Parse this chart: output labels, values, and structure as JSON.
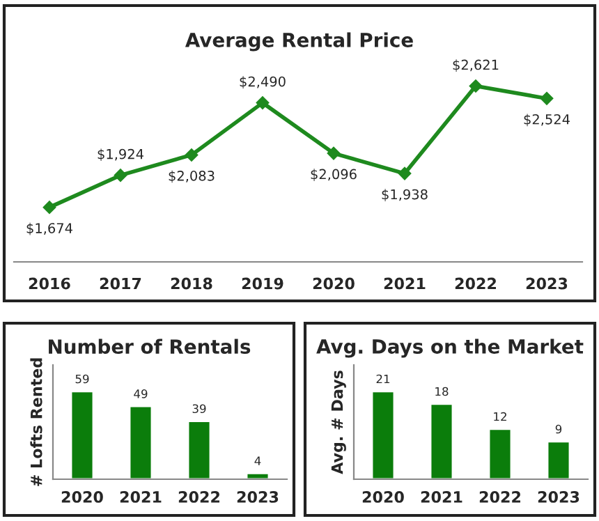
{
  "chart_data": [
    {
      "type": "line",
      "title": "Average Rental Price",
      "categories": [
        "2016",
        "2017",
        "2018",
        "2019",
        "2020",
        "2021",
        "2022",
        "2023"
      ],
      "series": [
        {
          "color": "#1e8a1e",
          "values": [
            1674,
            1924,
            2083,
            2490,
            2096,
            1938,
            2621,
            2524
          ],
          "value_labels": [
            "$1,674",
            "$1,924",
            "$2,083",
            "$2,490",
            "$2,096",
            "$1,938",
            "$2,621",
            "$2,524"
          ]
        }
      ],
      "marker": "diamond",
      "line_style": "solid",
      "tick_labels": "x",
      "grid": false,
      "legend": false
    },
    {
      "type": "bar",
      "title": "Number of Rentals",
      "ylabel": "# Lofts Rented",
      "categories": [
        "2020",
        "2021",
        "2022",
        "2023"
      ],
      "values": [
        59,
        49,
        39,
        4
      ],
      "color": "#0b7d0b",
      "data_labels": true,
      "tick_labels": "x",
      "grid": false,
      "legend": false
    },
    {
      "type": "bar",
      "title": "Avg. Days on the Market",
      "ylabel": "Avg. # Days",
      "categories": [
        "2020",
        "2021",
        "2022",
        "2023"
      ],
      "values": [
        21,
        18,
        12,
        9
      ],
      "color": "#0b7d0b",
      "data_labels": true,
      "tick_labels": "x",
      "grid": false,
      "legend": false
    }
  ]
}
